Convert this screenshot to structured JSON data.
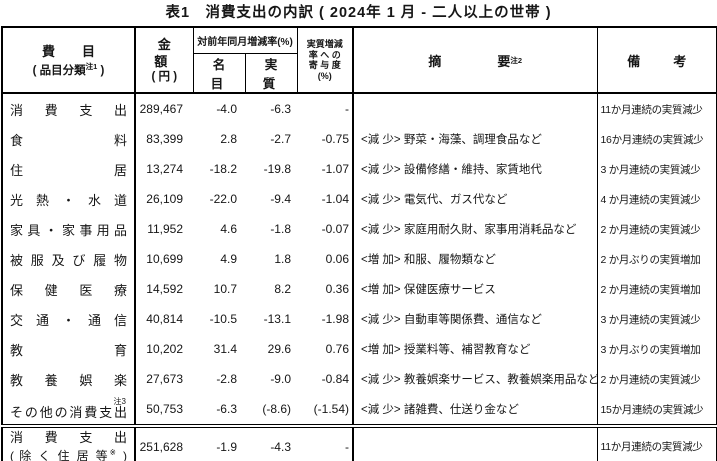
{
  "title": "表1　消費支出の内訳 ( 2024年 1 月 - 二人以上の世帯 )",
  "header": {
    "item_line1": "費　目",
    "item_line2_open": "( 品目分類",
    "item_line2_sup": "注1",
    "item_line2_close": " )",
    "amount_line1": "金　額",
    "amount_line2": "( 円 )",
    "yoy_label": "対前年同月増減率(%)",
    "yoy_nominal": "名　目",
    "yoy_real": "実　質",
    "contribution_lines": [
      "実質増減",
      "率 へ の",
      "寄 与 度",
      "(%)"
    ],
    "remarks_left": "摘",
    "remarks_right": "要",
    "remarks_sup": "注2",
    "notes_label": "備　考"
  },
  "rows": [
    {
      "name": "消 費 支 出",
      "amount": "289,467",
      "nominal": "-4.0",
      "real": "-6.3",
      "contribution": "-",
      "remark": "",
      "note": "11か月連続の実質減少"
    },
    {
      "name": "食 料",
      "amount": "83,399",
      "nominal": "2.8",
      "real": "-2.7",
      "contribution": "-0.75",
      "remark": "<減 少> 野菜・海藻、調理食品など",
      "note": "16か月連続の実質減少"
    },
    {
      "name": "住 居",
      "amount": "13,274",
      "nominal": "-18.2",
      "real": "-19.8",
      "contribution": "-1.07",
      "remark": "<減 少> 設備修繕・維持、家賃地代",
      "note": "3 か月連続の実質減少"
    },
    {
      "name": "光 熱 ・ 水 道",
      "amount": "26,109",
      "nominal": "-22.0",
      "real": "-9.4",
      "contribution": "-1.04",
      "remark": "<減 少> 電気代、ガス代など",
      "note": "4 か月連続の実質減少"
    },
    {
      "name": "家 具 ・ 家 事 用 品",
      "amount": "11,952",
      "nominal": "4.6",
      "real": "-1.8",
      "contribution": "-0.07",
      "remark": "<減 少> 家庭用耐久財、家事用消耗品など",
      "note": "2 か月連続の実質減少"
    },
    {
      "name": "被 服 及 び 履 物",
      "amount": "10,699",
      "nominal": "4.9",
      "real": "1.8",
      "contribution": "0.06",
      "remark": "<増 加> 和服、履物類など",
      "note": "2 か月ぶりの実質増加"
    },
    {
      "name": "保 健 医 療",
      "amount": "14,592",
      "nominal": "10.7",
      "real": "8.2",
      "contribution": "0.36",
      "remark": "<増 加> 保健医療サービス",
      "note": "2 か月連続の実質増加"
    },
    {
      "name": "交 通 ・ 通 信",
      "amount": "40,814",
      "nominal": "-10.5",
      "real": "-13.1",
      "contribution": "-1.98",
      "remark": "<減 少> 自動車等関係費、通信など",
      "note": "3 か月連続の実質減少"
    },
    {
      "name": "教 育",
      "amount": "10,202",
      "nominal": "31.4",
      "real": "29.6",
      "contribution": "0.76",
      "remark": "<増 加> 授業料等、補習教育など",
      "note": "3 か月ぶりの実質増加"
    },
    {
      "name": "教 養 娯 楽",
      "amount": "27,673",
      "nominal": "-2.8",
      "real": "-9.0",
      "contribution": "-0.84",
      "remark": "<減 少> 教養娯楽サービス、教養娯楽用品など",
      "note": "2 か月連続の実質減少"
    },
    {
      "name": "その他の消費支出",
      "sup": "注3",
      "amount": "50,753",
      "nominal": "-6.3",
      "real": "(-8.6)",
      "contribution": "(-1.54)",
      "remark": "<減 少> 諸雑費、仕送り金など",
      "note": "15か月連続の実質減少"
    }
  ],
  "total_row": {
    "name_line1": "消 費 支 出",
    "name_line2_open": "( 除 く 住 居 等",
    "name_line2_sup": "※",
    "name_line2_close": " )",
    "amount": "251,628",
    "nominal": "-1.9",
    "real": "-4.3",
    "contribution": "-",
    "remark": "",
    "note": "11か月連続の実質減少"
  },
  "colors": {
    "border": "#000000",
    "text": "#161616",
    "background": "#ffffff"
  }
}
